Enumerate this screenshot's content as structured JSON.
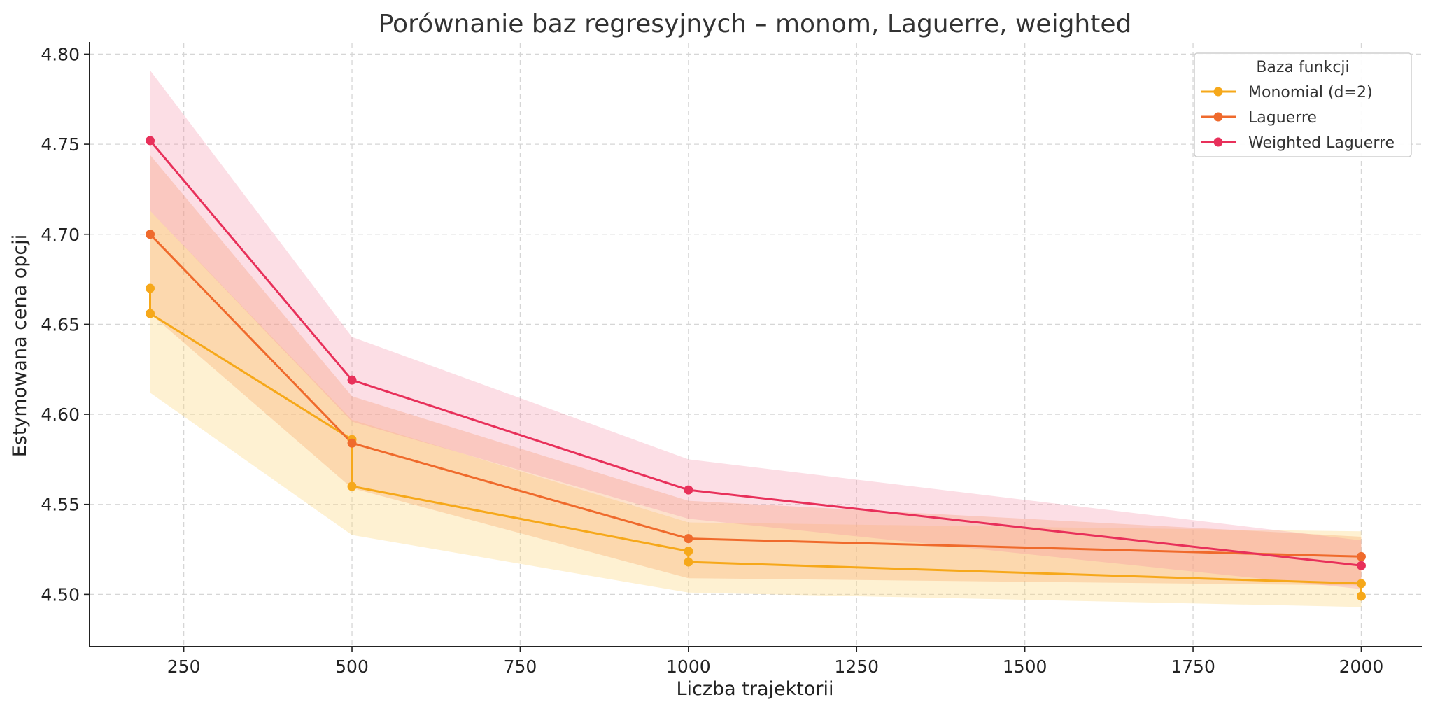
{
  "chart_data": {
    "type": "line",
    "title": "Porównanie baz regresyjnych – monom, Laguerre, weighted",
    "xlabel": "Liczba trajektorii",
    "ylabel": "Estymowana cena opcji",
    "xlim": [
      110,
      2090
    ],
    "ylim": [
      4.471,
      4.806
    ],
    "xticks": [
      250,
      500,
      750,
      1000,
      1250,
      1500,
      1750,
      2000
    ],
    "yticks": [
      4.5,
      4.55,
      4.6,
      4.65,
      4.7,
      4.75,
      4.8
    ],
    "xtick_labels": [
      "250",
      "500",
      "750",
      "1000",
      "1250",
      "1500",
      "1750",
      "2000"
    ],
    "ytick_labels": [
      "4.50",
      "4.55",
      "4.60",
      "4.65",
      "4.70",
      "4.75",
      "4.80"
    ],
    "grid": true,
    "legend": {
      "title": "Baza funkcji",
      "placement": "top-right"
    },
    "series": [
      {
        "name": "Monomial (d=2)",
        "color": "#f6a81a",
        "band_color": "#fcd98a",
        "band_opacity": 0.38,
        "points": [
          {
            "x": 200,
            "y": 4.67
          },
          {
            "x": 200,
            "y": 4.656
          },
          {
            "x": 500,
            "y": 4.586
          },
          {
            "x": 500,
            "y": 4.56
          },
          {
            "x": 1000,
            "y": 4.524
          },
          {
            "x": 1000,
            "y": 4.518
          },
          {
            "x": 2000,
            "y": 4.506
          },
          {
            "x": 2000,
            "y": 4.499
          }
        ],
        "band": [
          {
            "x": 200,
            "low": 4.612,
            "high": 4.713
          },
          {
            "x": 500,
            "low": 4.533,
            "high": 4.597
          },
          {
            "x": 1000,
            "low": 4.501,
            "high": 4.54
          },
          {
            "x": 2000,
            "low": 4.493,
            "high": 4.535
          }
        ]
      },
      {
        "name": "Laguerre",
        "color": "#ef6a2c",
        "band_color": "#f8a86e",
        "band_opacity": 0.35,
        "points": [
          {
            "x": 200,
            "y": 4.7
          },
          {
            "x": 500,
            "y": 4.584
          },
          {
            "x": 1000,
            "y": 4.531
          },
          {
            "x": 2000,
            "y": 4.521
          }
        ],
        "band": [
          {
            "x": 200,
            "low": 4.656,
            "high": 4.744
          },
          {
            "x": 500,
            "low": 4.559,
            "high": 4.61
          },
          {
            "x": 1000,
            "low": 4.509,
            "high": 4.552
          },
          {
            "x": 2000,
            "low": 4.505,
            "high": 4.532
          }
        ]
      },
      {
        "name": "Weighted Laguerre",
        "color": "#e8305a",
        "band_color": "#f58aa2",
        "band_opacity": 0.28,
        "points": [
          {
            "x": 200,
            "y": 4.752
          },
          {
            "x": 500,
            "y": 4.619
          },
          {
            "x": 1000,
            "y": 4.558
          },
          {
            "x": 2000,
            "y": 4.516
          }
        ],
        "band": [
          {
            "x": 200,
            "low": 4.713,
            "high": 4.791
          },
          {
            "x": 500,
            "low": 4.596,
            "high": 4.643
          },
          {
            "x": 1000,
            "low": 4.542,
            "high": 4.575
          },
          {
            "x": 2000,
            "low": 4.503,
            "high": 4.53
          }
        ]
      }
    ]
  }
}
